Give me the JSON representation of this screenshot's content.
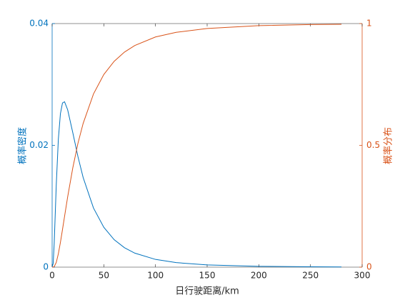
{
  "chart_data": {
    "type": "line",
    "xlabel": "日行驶距离/km",
    "ylabel": "概率密度",
    "y2label": "概率分布",
    "x": [
      0,
      1,
      2,
      4,
      6,
      8,
      10,
      12,
      15,
      20,
      25,
      30,
      40,
      50,
      60,
      70,
      80,
      100,
      120,
      150,
      200,
      250,
      280
    ],
    "series": [
      {
        "name": "概率密度",
        "color": "#0072BD",
        "axis": "y",
        "values": [
          0,
          0.00061,
          0.00392,
          0.01354,
          0.021,
          0.0252,
          0.02696,
          0.02716,
          0.02585,
          0.02207,
          0.01813,
          0.01472,
          0.00971,
          0.00654,
          0.00451,
          0.00319,
          0.0023,
          0.00127,
          0.000742,
          0.000364,
          0.000132,
          5.59e-05,
          3.52e-05
        ]
      },
      {
        "name": "概率分布",
        "color": "#D95319",
        "axis": "y2",
        "values": [
          0,
          0.0001,
          0.0022,
          0.0196,
          0.0548,
          0.1013,
          0.154,
          0.208,
          0.288,
          0.408,
          0.509,
          0.59,
          0.711,
          0.791,
          0.845,
          0.883,
          0.91,
          0.945,
          0.964,
          0.98,
          0.9915,
          0.9958,
          0.9972
        ]
      }
    ],
    "xlim": [
      0,
      300
    ],
    "xticks": [
      0,
      50,
      100,
      150,
      200,
      250,
      300
    ],
    "ylim": [
      0,
      0.04
    ],
    "yticks": [
      0,
      0.02,
      0.04
    ],
    "y2lim": [
      0,
      1
    ],
    "y2ticks": [
      0,
      0.5,
      1
    ]
  }
}
